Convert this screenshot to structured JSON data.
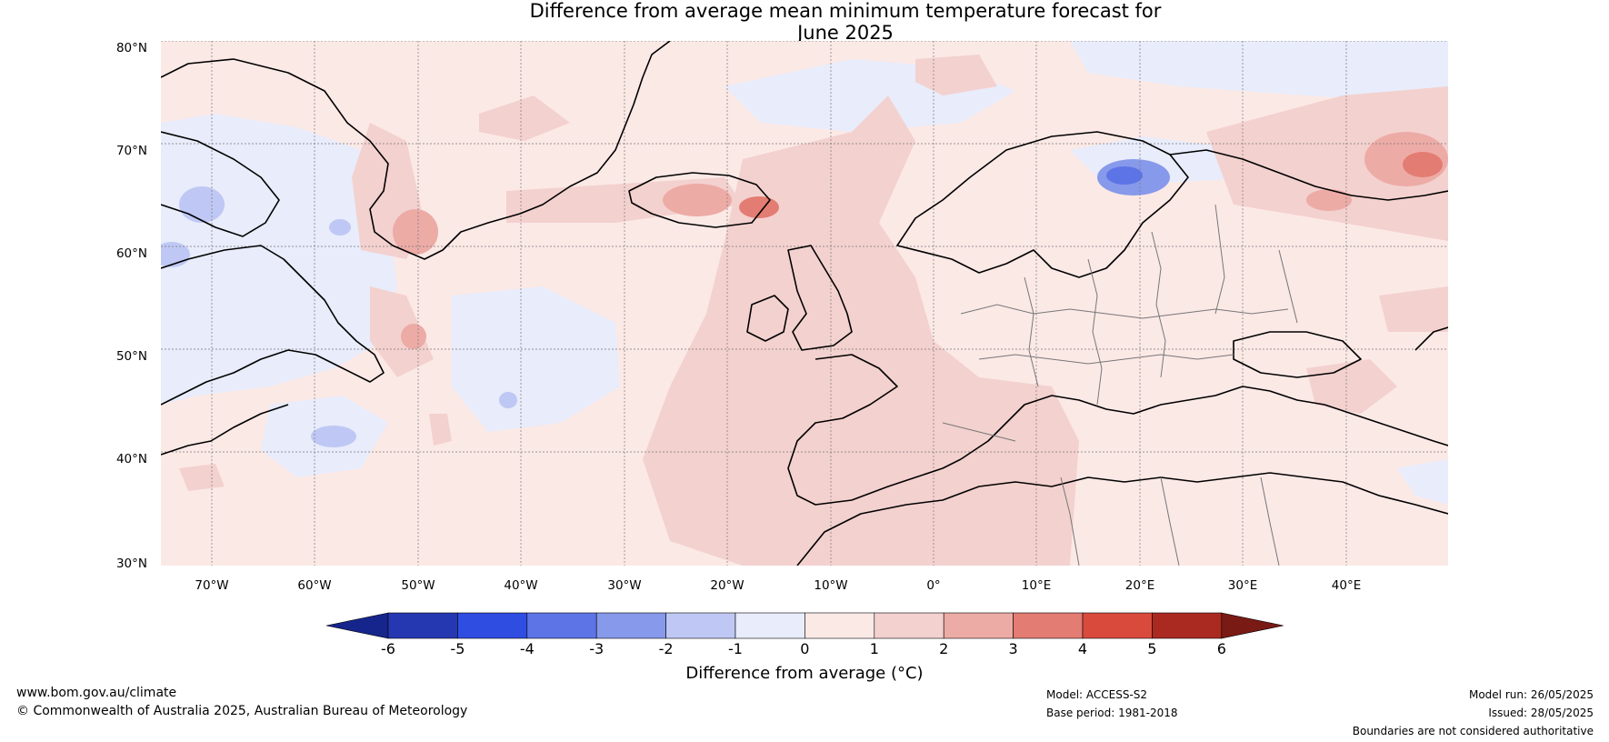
{
  "title_line1": "Difference from average mean minimum temperature forecast for",
  "title_line2": "June 2025",
  "lat_labels": [
    "80°N",
    "70°N",
    "60°N",
    "50°N",
    "40°N",
    "30°N"
  ],
  "lon_labels": [
    "70°W",
    "60°W",
    "50°W",
    "40°W",
    "30°W",
    "20°W",
    "10°W",
    "0°",
    "10°E",
    "20°E",
    "30°E",
    "40°E"
  ],
  "colorbar": {
    "title": "Difference from average (°C)",
    "ticks": [
      "-6",
      "-5",
      "-4",
      "-3",
      "-2",
      "-1",
      "0",
      "1",
      "2",
      "3",
      "4",
      "5",
      "6"
    ],
    "colors": [
      "#15258c",
      "#2637b2",
      "#2f4de0",
      "#5c74e6",
      "#8799ea",
      "#bfc8f4",
      "#e8ecfb",
      "#fbe9e6",
      "#f3d1cf",
      "#edaba6",
      "#e37c72",
      "#d94a3d",
      "#aa2a22",
      "#7a1a15"
    ]
  },
  "footer": {
    "website": "www.bom.gov.au/climate",
    "copyright": "© Commonwealth of Australia 2025, Australian Bureau of Meteorology",
    "model": "Model: ACCESS-S2",
    "base_period": "Base period: 1981-2018",
    "model_run": "Model run: 26/05/2025",
    "issued": "Issued: 28/05/2025",
    "disclaimer": "Boundaries are not considered authoritative"
  }
}
